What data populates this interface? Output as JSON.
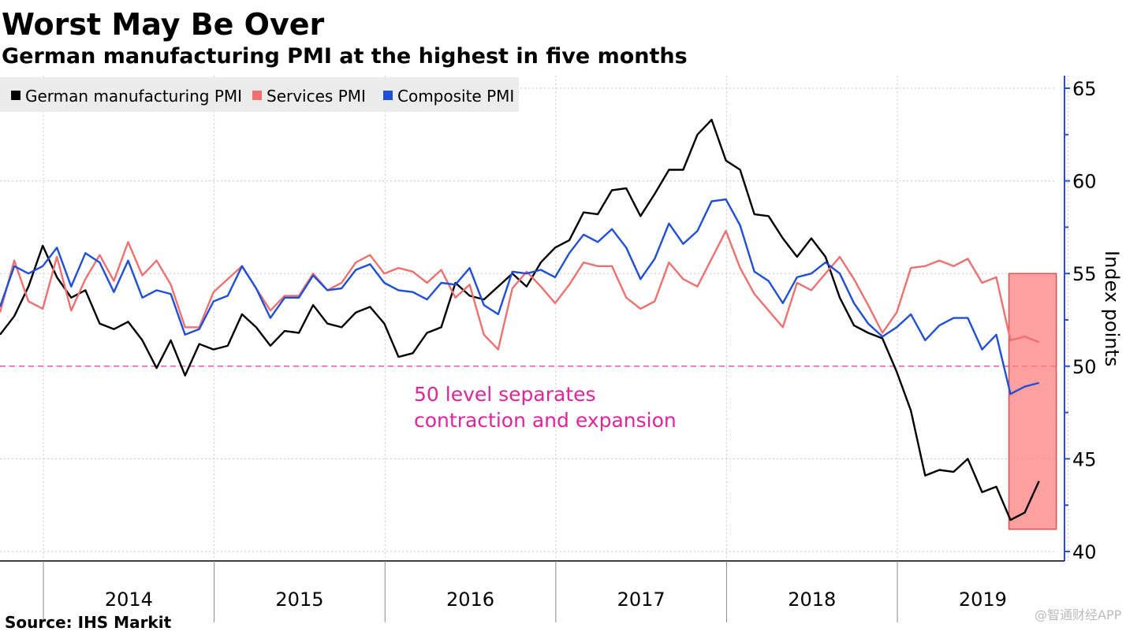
{
  "title": "Worst May Be Over",
  "subtitle": "German manufacturing PMI at the highest in five months",
  "source": "Source: IHS Markit",
  "watermark": "@智通财经APP",
  "chart_data": {
    "type": "line",
    "title": "Worst May Be Over",
    "subtitle": "German manufacturing PMI at the highest in five months",
    "xlabel": "",
    "ylabel": "Index points",
    "x_start": "2013-10",
    "x_end": "2019-11",
    "frequency": "monthly",
    "x_tick_labels": [
      "2014",
      "2015",
      "2016",
      "2017",
      "2018",
      "2019"
    ],
    "ylim": [
      40,
      65
    ],
    "y_ticks": [
      40,
      45,
      50,
      55,
      60,
      65
    ],
    "grid": true,
    "legend_position": "top-left",
    "reference_line": {
      "value": 50,
      "color": "#e0249a"
    },
    "annotation": {
      "line1": "50 level separates",
      "line2": "contraction and expansion"
    },
    "highlight": {
      "x_from": "2019-09",
      "x_to": "2019-11",
      "y_range": [
        41.2,
        55
      ],
      "color": "#ff8080"
    },
    "series": [
      {
        "name": "German manufacturing PMI",
        "color": "#000000",
        "values": [
          51.7,
          52.7,
          54.3,
          56.5,
          54.8,
          53.7,
          54.1,
          52.3,
          52.0,
          52.4,
          51.4,
          49.9,
          51.4,
          49.5,
          51.2,
          50.9,
          51.1,
          52.8,
          52.1,
          51.1,
          51.9,
          51.8,
          53.3,
          52.3,
          52.1,
          52.9,
          53.2,
          52.3,
          50.5,
          50.7,
          51.8,
          52.1,
          54.5,
          53.8,
          53.6,
          54.3,
          55.0,
          54.3,
          55.6,
          56.4,
          56.8,
          58.3,
          58.2,
          59.5,
          59.6,
          58.1,
          59.3,
          60.6,
          60.6,
          62.5,
          63.3,
          61.1,
          60.6,
          58.2,
          58.1,
          56.9,
          55.9,
          56.9,
          55.9,
          53.7,
          52.2,
          51.8,
          51.5,
          49.7,
          47.6,
          44.1,
          44.4,
          44.3,
          45.0,
          43.2,
          43.5,
          41.7,
          42.1,
          43.8
        ]
      },
      {
        "name": "Services PMI",
        "color": "#f07070",
        "values": [
          52.9,
          55.7,
          53.5,
          53.1,
          55.9,
          53.0,
          54.7,
          56.0,
          54.6,
          56.7,
          54.9,
          55.7,
          54.4,
          52.1,
          52.1,
          54.0,
          54.7,
          55.4,
          54.2,
          53.0,
          53.8,
          53.8,
          55.0,
          54.1,
          54.5,
          55.6,
          56.0,
          55.0,
          55.3,
          55.1,
          54.5,
          55.2,
          53.7,
          54.4,
          51.7,
          50.9,
          54.2,
          55.1,
          54.3,
          53.4,
          54.4,
          55.6,
          55.4,
          55.4,
          53.7,
          53.1,
          53.5,
          55.6,
          54.7,
          54.3,
          55.8,
          57.3,
          55.3,
          53.9,
          53.0,
          52.1,
          54.5,
          54.1,
          55.0,
          55.9,
          54.7,
          53.3,
          51.8,
          52.9,
          55.3,
          55.4,
          55.7,
          55.4,
          55.8,
          54.5,
          54.8,
          51.4,
          51.6,
          51.3
        ]
      },
      {
        "name": "Composite PMI",
        "color": "#1f4fd8",
        "values": [
          53.2,
          55.4,
          55.0,
          55.4,
          56.4,
          54.3,
          56.1,
          55.6,
          54.0,
          55.7,
          53.7,
          54.1,
          53.9,
          51.7,
          52.0,
          53.5,
          53.8,
          55.4,
          54.2,
          52.6,
          53.7,
          53.7,
          54.9,
          54.1,
          54.2,
          55.2,
          55.5,
          54.5,
          54.1,
          54.0,
          53.6,
          54.5,
          54.4,
          55.3,
          53.3,
          52.8,
          55.1,
          55.0,
          55.2,
          54.8,
          56.1,
          57.1,
          56.7,
          57.4,
          56.4,
          54.7,
          55.8,
          57.7,
          56.6,
          57.3,
          58.9,
          59.0,
          57.6,
          55.1,
          54.6,
          53.4,
          54.8,
          55.0,
          55.6,
          55.0,
          53.4,
          52.3,
          51.6,
          52.1,
          52.8,
          51.4,
          52.2,
          52.6,
          52.6,
          50.9,
          51.7,
          48.5,
          48.9,
          49.1
        ]
      }
    ]
  }
}
